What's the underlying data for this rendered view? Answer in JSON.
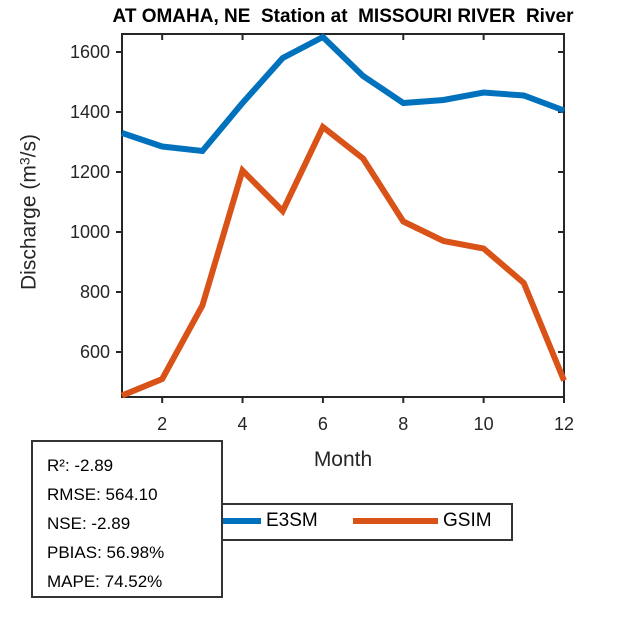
{
  "figure": {
    "title": "AT OMAHA, NE  Station at  MISSOURI RIVER  River",
    "xlabel": "Month",
    "ylabel": "Discharge (m³/s)",
    "ylabel_pre": "Discharge (m",
    "ylabel_sup": "3",
    "ylabel_post": "/s)"
  },
  "stats_box": {
    "lines": [
      "R²: -2.89",
      "RMSE: 564.10",
      "NSE: -2.89",
      "PBIAS: 56.98%",
      "MAPE: 74.52%"
    ]
  },
  "legend": {
    "items": [
      {
        "label": "E3SM",
        "color": "#0072BD"
      },
      {
        "label": "GSIM",
        "color": "#D95319"
      }
    ]
  },
  "colors": {
    "e3sm_blue": "#0072BD",
    "gsim_orange": "#D95319",
    "axis": "#262626"
  },
  "chart_data": {
    "type": "line",
    "title": "AT OMAHA, NE  Station at  MISSOURI RIVER  River",
    "xlabel": "Month",
    "ylabel": "Discharge (m³/s)",
    "x": [
      1,
      2,
      3,
      4,
      5,
      6,
      7,
      8,
      9,
      10,
      11,
      12
    ],
    "xlim": [
      1,
      12
    ],
    "ylim": [
      450,
      1660
    ],
    "x_ticks": [
      2,
      4,
      6,
      8,
      10,
      12
    ],
    "y_ticks": [
      600,
      800,
      1000,
      1200,
      1400,
      1600
    ],
    "grid": false,
    "legend_position": "below-axis",
    "series": [
      {
        "name": "E3SM",
        "color": "#0072BD",
        "values": [
          1330,
          1285,
          1270,
          1430,
          1580,
          1650,
          1520,
          1430,
          1440,
          1465,
          1455,
          1405
        ]
      },
      {
        "name": "GSIM",
        "color": "#D95319",
        "values": [
          455,
          510,
          755,
          1205,
          1070,
          1350,
          1245,
          1035,
          970,
          945,
          830,
          505
        ]
      }
    ],
    "annotations": {
      "stats": [
        "R²: -2.89",
        "RMSE: 564.10",
        "NSE: -2.89",
        "PBIAS: 56.98%",
        "MAPE: 74.52%"
      ]
    }
  }
}
